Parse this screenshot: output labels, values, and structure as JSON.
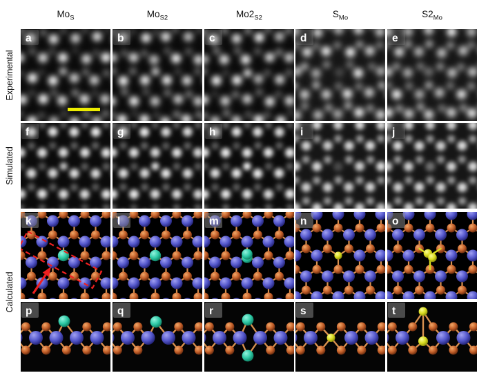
{
  "columns": [
    {
      "id": "MoS",
      "header": {
        "base": "Mo",
        "sub": "S"
      }
    },
    {
      "id": "MoS2",
      "header": {
        "base": "Mo",
        "sub": "S2"
      }
    },
    {
      "id": "Mo2S2",
      "header": {
        "base": "Mo2",
        "sub": "S2"
      }
    },
    {
      "id": "SMo",
      "header": {
        "base": "S",
        "sub": "Mo"
      }
    },
    {
      "id": "S2Mo",
      "header": {
        "base": "S2",
        "sub": "Mo"
      }
    }
  ],
  "row_labels": {
    "experimental": "Experimental",
    "simulated": "Simulated",
    "calculated": "Calculated"
  },
  "panel_letters": {
    "experimental": [
      "a",
      "b",
      "c",
      "d",
      "e"
    ],
    "simulated": [
      "f",
      "g",
      "h",
      "i",
      "j"
    ],
    "calculated_top": [
      "k",
      "l",
      "m",
      "n",
      "o"
    ],
    "calculated_side": [
      "p",
      "q",
      "r",
      "s",
      "t"
    ]
  },
  "colors": {
    "background": "#ffffff",
    "panel_background": "#000000",
    "mo_atom": "#5558cc",
    "s_atom": "#c4602a",
    "mo_substituent_teal": "#2fcaa6",
    "s_substituent_yellow": "#d9dc20",
    "bond": "#d9914f",
    "annotation_red": "#ee2020",
    "scale_bar": "#ecec00",
    "letter": "#ffffff"
  },
  "stem_columns": [
    {
      "id": "MoS",
      "mo_intensity": 0.88,
      "s_intensity": 0.33,
      "defect_site": "S",
      "defect_intensity": 0.78
    },
    {
      "id": "MoS2",
      "mo_intensity": 0.88,
      "s_intensity": 0.33,
      "defect_site": "S",
      "defect_intensity": 0.9
    },
    {
      "id": "Mo2S2",
      "mo_intensity": 0.88,
      "s_intensity": 0.34,
      "defect_site": "S",
      "defect_intensity": 1.0
    },
    {
      "id": "SMo",
      "mo_intensity": 0.82,
      "s_intensity": 0.58,
      "defect_site": "Mo",
      "defect_intensity": 0.22
    },
    {
      "id": "S2Mo",
      "mo_intensity": 0.82,
      "s_intensity": 0.58,
      "defect_site": "Mo",
      "defect_intensity": 0.4
    }
  ],
  "top_view_defects": {
    "MoS": "teal-single",
    "MoS2": "teal-single",
    "Mo2S2": "teal-double",
    "SMo": "yellow-single",
    "S2Mo": "yellow-double"
  },
  "annotations": {
    "scale_bar_panel": "a",
    "unit_cell_panel": "k",
    "arrow_panel": "k"
  }
}
